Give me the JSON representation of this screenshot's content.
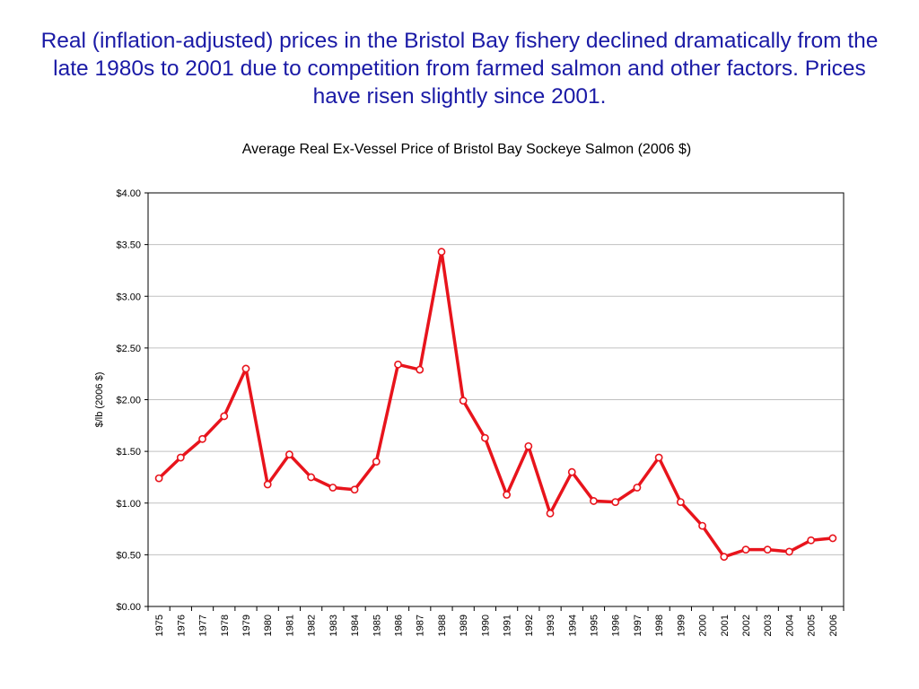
{
  "headline": "Real (inflation-adjusted) prices in the Bristol Bay fishery declined dramatically from the late 1980s to 2001 due to competition from farmed salmon and other factors.  Prices have risen slightly since 2001.",
  "chart_data": {
    "type": "line",
    "title": "Average Real Ex-Vessel Price of Bristol Bay Sockeye Salmon (2006 $)",
    "xlabel": "",
    "ylabel": "$/lb (2006 $)",
    "ylim": [
      0,
      4
    ],
    "yticks": [
      "$0.00",
      "$0.50",
      "$1.00",
      "$1.50",
      "$2.00",
      "$2.50",
      "$3.00",
      "$3.50",
      "$4.00"
    ],
    "grid": true,
    "line_color": "#e8141c",
    "marker": "hollow circle",
    "categories": [
      "1975",
      "1976",
      "1977",
      "1978",
      "1979",
      "1980",
      "1981",
      "1982",
      "1983",
      "1984",
      "1985",
      "1986",
      "1987",
      "1988",
      "1989",
      "1990",
      "1991",
      "1992",
      "1993",
      "1994",
      "1995",
      "1996",
      "1997",
      "1998",
      "1999",
      "2000",
      "2001",
      "2002",
      "2003",
      "2004",
      "2005",
      "2006"
    ],
    "values": [
      1.24,
      1.44,
      1.62,
      1.84,
      2.3,
      1.18,
      1.47,
      1.25,
      1.15,
      1.13,
      1.4,
      2.34,
      2.29,
      3.43,
      1.99,
      1.63,
      1.08,
      1.55,
      0.9,
      1.3,
      1.02,
      1.01,
      1.15,
      1.44,
      1.01,
      0.78,
      0.48,
      0.55,
      0.55,
      0.53,
      0.64,
      0.66
    ]
  }
}
